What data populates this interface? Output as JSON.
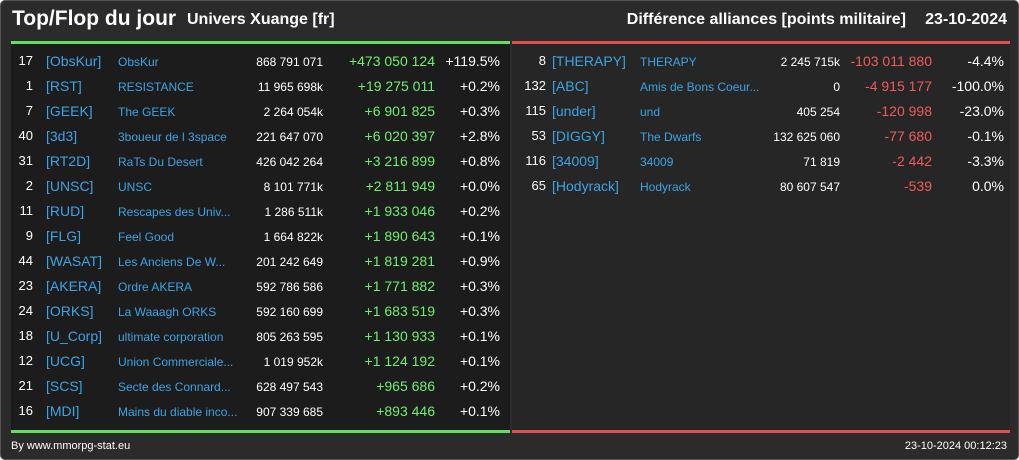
{
  "header": {
    "title": "Top/Flop du jour",
    "universe": "Univers Xuange [fr]",
    "subtitle": "Différence alliances [points militaire]",
    "date": "23-10-2024"
  },
  "colors": {
    "background": "#2b2b2b",
    "panel": "#1c1c1c",
    "top_accent": "#5fe05f",
    "flop_accent": "#e05050",
    "link": "#3ba4e6",
    "positive": "#6fef6f",
    "negative": "#f05a5a"
  },
  "top": [
    {
      "rank": "17",
      "tag": "[ObsKur]",
      "name": "ObsKur",
      "points": "868 791 071",
      "diff": "+473 050 124",
      "pct": "+119.5%"
    },
    {
      "rank": "1",
      "tag": "[RST]",
      "name": "RESISTANCE",
      "points": "11 965 698k",
      "diff": "+19 275 011",
      "pct": "+0.2%"
    },
    {
      "rank": "7",
      "tag": "[GEEK]",
      "name": "The GEEK",
      "points": "2 264 054k",
      "diff": "+6 901 825",
      "pct": "+0.3%"
    },
    {
      "rank": "40",
      "tag": "[3d3]",
      "name": "3boueur de l 3space",
      "points": "221 647 070",
      "diff": "+6 020 397",
      "pct": "+2.8%"
    },
    {
      "rank": "31",
      "tag": "[RT2D]",
      "name": "RaTs Du Desert",
      "points": "426 042 264",
      "diff": "+3 216 899",
      "pct": "+0.8%"
    },
    {
      "rank": "2",
      "tag": "[UNSC]",
      "name": "UNSC",
      "points": "8 101 771k",
      "diff": "+2 811 949",
      "pct": "+0.0%"
    },
    {
      "rank": "11",
      "tag": "[RUD]",
      "name": "Rescapes des Univ...",
      "points": "1 286 511k",
      "diff": "+1 933 046",
      "pct": "+0.2%"
    },
    {
      "rank": "9",
      "tag": "[FLG]",
      "name": "Feel Good",
      "points": "1 664 822k",
      "diff": "+1 890 643",
      "pct": "+0.1%"
    },
    {
      "rank": "44",
      "tag": "[WASAT]",
      "name": "Les Anciens De W...",
      "points": "201 242 649",
      "diff": "+1 819 281",
      "pct": "+0.9%"
    },
    {
      "rank": "23",
      "tag": "[AKERA]",
      "name": "Ordre AKERA",
      "points": "592 786 586",
      "diff": "+1 771 882",
      "pct": "+0.3%"
    },
    {
      "rank": "24",
      "tag": "[ORKS]",
      "name": "La Waaagh ORKS",
      "points": "592 160 699",
      "diff": "+1 683 519",
      "pct": "+0.3%"
    },
    {
      "rank": "18",
      "tag": "[U_Corp]",
      "name": "ultimate corporation",
      "points": "805 263 595",
      "diff": "+1 130 933",
      "pct": "+0.1%"
    },
    {
      "rank": "12",
      "tag": "[UCG]",
      "name": "Union Commerciale...",
      "points": "1 019 952k",
      "diff": "+1 124 192",
      "pct": "+0.1%"
    },
    {
      "rank": "21",
      "tag": "[SCS]",
      "name": "Secte des Connard...",
      "points": "628 497 543",
      "diff": "+965 686",
      "pct": "+0.2%"
    },
    {
      "rank": "16",
      "tag": "[MDI]",
      "name": "Mains du diable inco...",
      "points": "907 339 685",
      "diff": "+893 446",
      "pct": "+0.1%"
    }
  ],
  "flop": [
    {
      "rank": "8",
      "tag": "[THERAPY]",
      "name": "THERAPY",
      "points": "2 245 715k",
      "diff": "-103 011 880",
      "pct": "-4.4%"
    },
    {
      "rank": "132",
      "tag": "[ABC]",
      "name": "Amis de Bons Coeur...",
      "points": "0",
      "diff": "-4 915 177",
      "pct": "-100.0%"
    },
    {
      "rank": "115",
      "tag": "[under]",
      "name": "und",
      "points": "405 254",
      "diff": "-120 998",
      "pct": "-23.0%"
    },
    {
      "rank": "53",
      "tag": "[DIGGY]",
      "name": "The Dwarfs",
      "points": "132 625 060",
      "diff": "-77 680",
      "pct": "-0.1%"
    },
    {
      "rank": "116",
      "tag": "[34009]",
      "name": "34009",
      "points": "71 819",
      "diff": "-2 442",
      "pct": "-3.3%"
    },
    {
      "rank": "65",
      "tag": "[Hodyrack]",
      "name": "Hodyrack",
      "points": "80 607 547",
      "diff": "-539",
      "pct": "0.0%"
    }
  ],
  "footer": {
    "credit": "By www.mmorpg-stat.eu",
    "timestamp": "23-10-2024 00:12:23"
  }
}
